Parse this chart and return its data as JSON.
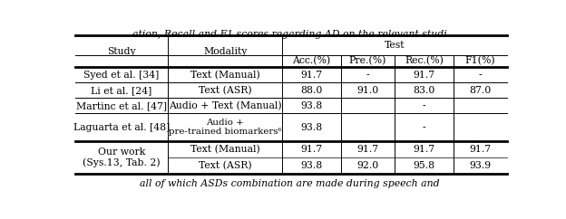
{
  "title": "Test",
  "col_headers_top": [
    "Study",
    "Modality",
    "Test"
  ],
  "col_headers_sub": [
    "Acc.(%)",
    "Pre.(%)",
    "Rec.(%)",
    "F1(%)"
  ],
  "rows": [
    [
      "Syed et al. [34]",
      "Text (Manual)",
      "91.7",
      "-",
      "91.7",
      "-"
    ],
    [
      "Li et al. [24]",
      "Text (ASR)",
      "88.0",
      "91.0",
      "83.0",
      "87.0"
    ],
    [
      "Martinc et al. [47]",
      "Audio + Text (Manual)",
      "93.8",
      "",
      "-",
      ""
    ],
    [
      "Laguarta et al. [48]",
      "Audio +\npre-trained biomarkers⁶",
      "93.8",
      "",
      "-",
      ""
    ],
    [
      "Our work\n(Sys.13, Tab. 2)",
      "Text (Manual)\nText (ASR)",
      "91.7\n93.8",
      "91.7\n92.0",
      "91.7\n95.8",
      "91.7\n93.9"
    ]
  ],
  "background_color": "#ffffff",
  "font_size": 7.8,
  "figsize": [
    6.24,
    2.42
  ],
  "caption_top": "ation, Recall and F1 scores regarding AD on the relevant studi",
  "caption_bottom": "all of which ASDs combination are made during speech and"
}
